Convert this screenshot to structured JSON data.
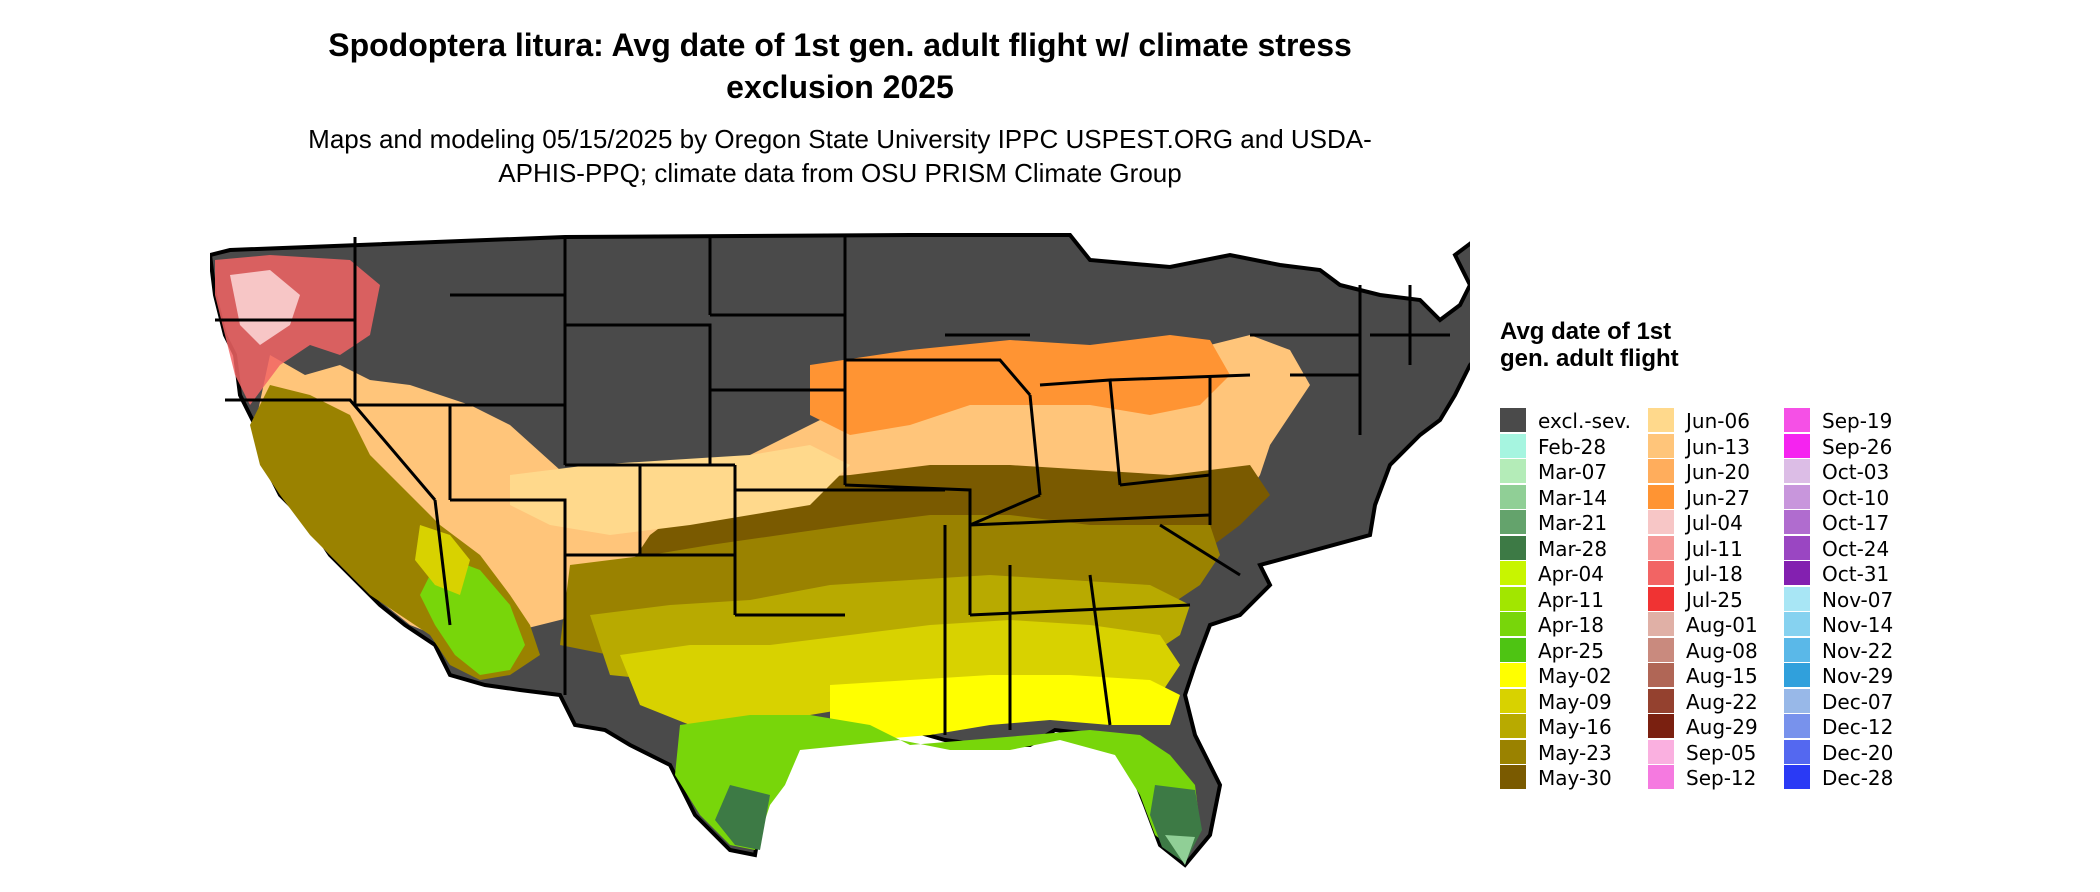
{
  "title": "Spodoptera litura: Avg date of 1st gen. adult flight w/ climate stress exclusion 2025",
  "subtitle": "Maps and modeling 05/15/2025 by Oregon State University IPPC USPEST.ORG and USDA-APHIS-PPQ; climate data from OSU PRISM Climate Group",
  "legend": {
    "title": "Avg date of 1st gen. adult flight",
    "columns": [
      [
        {
          "label": "excl.-sev.",
          "color": "#4a4a4a"
        },
        {
          "label": "Feb-28",
          "color": "#a6f5e0"
        },
        {
          "label": "Mar-07",
          "color": "#b4ecb8"
        },
        {
          "label": "Mar-14",
          "color": "#90cf96"
        },
        {
          "label": "Mar-21",
          "color": "#64a36c"
        },
        {
          "label": "Mar-28",
          "color": "#3d7a45"
        },
        {
          "label": "Apr-04",
          "color": "#c8f500"
        },
        {
          "label": "Apr-11",
          "color": "#a2e600"
        },
        {
          "label": "Apr-18",
          "color": "#78d60a"
        },
        {
          "label": "Apr-25",
          "color": "#4ec413"
        },
        {
          "label": "May-02",
          "color": "#ffff00"
        },
        {
          "label": "May-09",
          "color": "#d8d200"
        },
        {
          "label": "May-16",
          "color": "#b8aa00"
        },
        {
          "label": "May-23",
          "color": "#9a8200"
        },
        {
          "label": "May-30",
          "color": "#7a5a00"
        }
      ],
      [
        {
          "label": "Jun-06",
          "color": "#ffd98c"
        },
        {
          "label": "Jun-13",
          "color": "#ffc57a"
        },
        {
          "label": "Jun-20",
          "color": "#ffad5c"
        },
        {
          "label": "Jun-27",
          "color": "#ff9433"
        },
        {
          "label": "Jul-04",
          "color": "#f7c6c6"
        },
        {
          "label": "Jul-11",
          "color": "#f59a9a"
        },
        {
          "label": "Jul-18",
          "color": "#f26464"
        },
        {
          "label": "Jul-25",
          "color": "#f03333"
        },
        {
          "label": "Aug-01",
          "color": "#e0b0a6"
        },
        {
          "label": "Aug-08",
          "color": "#c98a7e"
        },
        {
          "label": "Aug-15",
          "color": "#b06656"
        },
        {
          "label": "Aug-22",
          "color": "#94412f"
        },
        {
          "label": "Aug-29",
          "color": "#7a2010"
        },
        {
          "label": "Sep-05",
          "color": "#fab0e0"
        },
        {
          "label": "Sep-12",
          "color": "#f57ae0"
        }
      ],
      [
        {
          "label": "Sep-19",
          "color": "#f550e6"
        },
        {
          "label": "Sep-26",
          "color": "#f523f0"
        },
        {
          "label": "Oct-03",
          "color": "#dcbde6"
        },
        {
          "label": "Oct-10",
          "color": "#c896dc"
        },
        {
          "label": "Oct-17",
          "color": "#b06ccf"
        },
        {
          "label": "Oct-24",
          "color": "#9a46c2"
        },
        {
          "label": "Oct-31",
          "color": "#8320b0"
        },
        {
          "label": "Nov-07",
          "color": "#a8e6f5"
        },
        {
          "label": "Nov-14",
          "color": "#86d2f0"
        },
        {
          "label": "Nov-22",
          "color": "#5ab8e8"
        },
        {
          "label": "Nov-29",
          "color": "#30a0dc"
        },
        {
          "label": "Dec-07",
          "color": "#98b8e8"
        },
        {
          "label": "Dec-12",
          "color": "#7892ec"
        },
        {
          "label": "Dec-20",
          "color": "#5468f0"
        },
        {
          "label": "Dec-28",
          "color": "#2a3af5"
        }
      ]
    ]
  }
}
